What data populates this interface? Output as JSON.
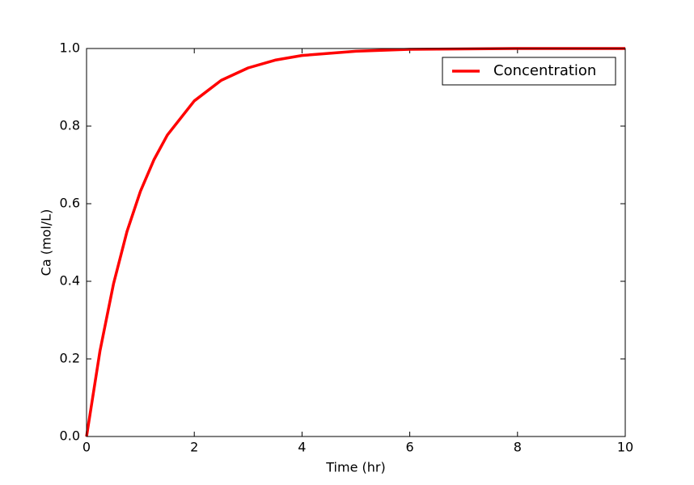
{
  "chart_data": {
    "type": "line",
    "xlabel": "Time (hr)",
    "ylabel": "Ca (mol/L)",
    "x": [
      0,
      0.25,
      0.5,
      0.75,
      1,
      1.25,
      1.5,
      2,
      2.5,
      3,
      3.5,
      4,
      5,
      6,
      7,
      8,
      9,
      10
    ],
    "series": [
      {
        "name": "Concentration",
        "color": "#ff0000",
        "values": [
          0,
          0.221,
          0.393,
          0.528,
          0.632,
          0.713,
          0.777,
          0.865,
          0.918,
          0.95,
          0.97,
          0.982,
          0.993,
          0.998,
          0.999,
          1.0,
          1.0,
          1.0
        ]
      }
    ],
    "xlim": [
      0,
      10
    ],
    "xticks": [
      0,
      2,
      4,
      6,
      8,
      10
    ],
    "ylim": [
      0,
      1
    ],
    "yticks": [
      {
        "value": 0,
        "label": "0.0"
      },
      0.2,
      0.4,
      0.6,
      0.8,
      {
        "value": 1,
        "label": "1.0"
      }
    ],
    "legend": "upper right",
    "grid": false
  }
}
